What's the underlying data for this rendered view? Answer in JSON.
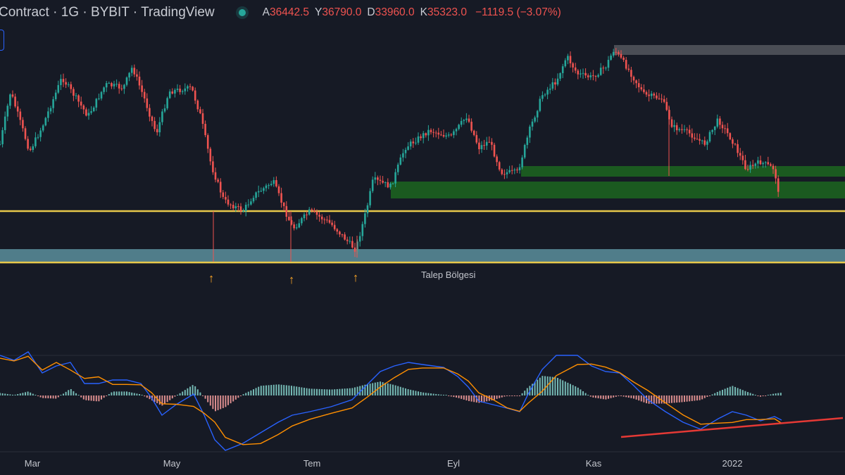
{
  "header": {
    "symbol_prefix": "Contract",
    "timeframe": "1G",
    "exchange": "BYBIT",
    "source": "TradingView",
    "ohlc": {
      "open_label": "A",
      "open": "36442.5",
      "high_label": "Y",
      "high": "36790.0",
      "low_label": "D",
      "low": "33960.0",
      "close_label": "K",
      "close": "35323.0",
      "change": "−1119.5 (−3.07%)"
    }
  },
  "annotations": {
    "demand_zone_label": "Talep Bölgesi",
    "arrow_glyph": "↑"
  },
  "x_axis": {
    "labels": [
      "Mar",
      "May",
      "Tem",
      "Eyl",
      "Kas",
      "2022"
    ]
  },
  "colors": {
    "background": "#161a25",
    "up": "#26a69a",
    "down": "#ef5350",
    "level_line": "#e6c74a",
    "demand_zone": "#5b8f9c",
    "support_zone": "#1b5e20",
    "resistance_zone": "#4a4d55",
    "macd_line": "#2962ff",
    "signal_line": "#ff8f00",
    "trendline": "#e53935",
    "arrow": "#ffa726"
  }
}
